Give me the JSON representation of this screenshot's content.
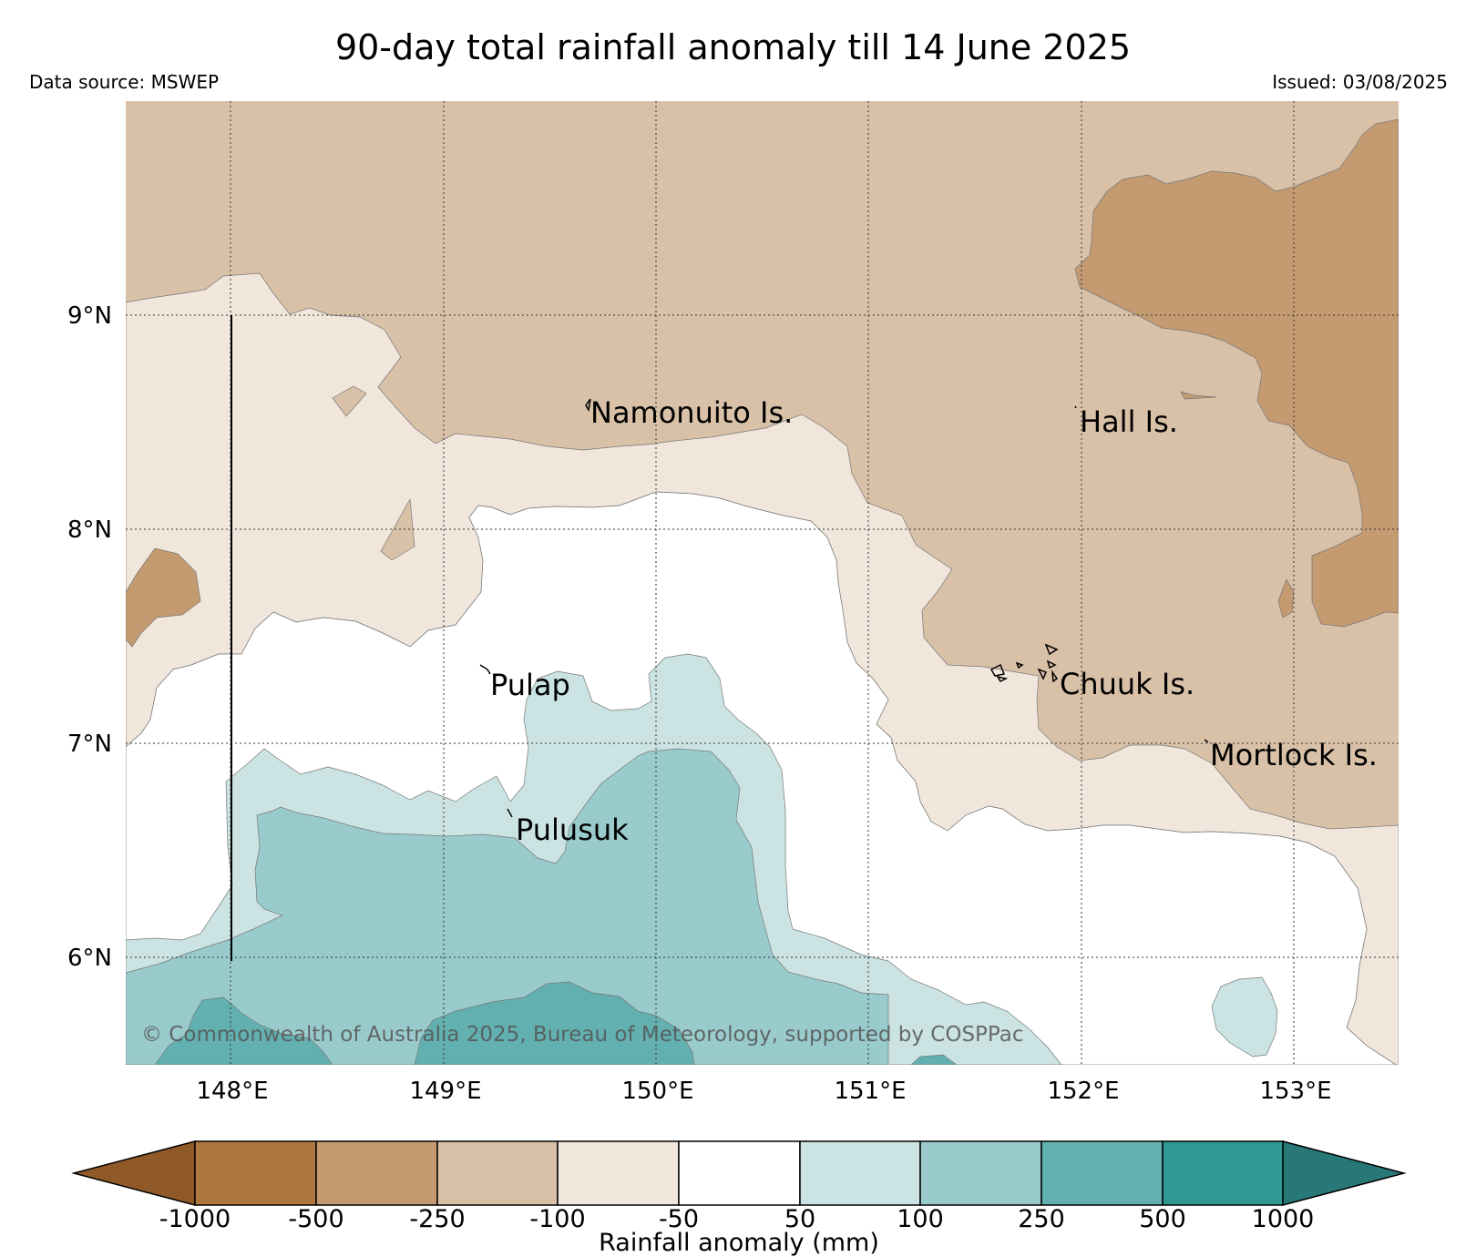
{
  "header": {
    "title": "90-day total rainfall anomaly till 14 June 2025",
    "source": "Data source: MSWEP",
    "issued": "Issued: 03/08/2025"
  },
  "map": {
    "lat_labels": [
      "9°N",
      "8°N",
      "7°N",
      "6°N"
    ],
    "lon_labels": [
      "148°E",
      "149°E",
      "150°E",
      "151°E",
      "152°E",
      "153°E"
    ],
    "places": {
      "namonuito": "Namonuito Is.",
      "hall": "Hall Is.",
      "pulap": "Pulap",
      "chuuk": "Chuuk Is.",
      "mortlock": "Mortlock Is.",
      "pulusuk": "Pulusuk"
    },
    "copyright": "© Commonwealth of Australia 2025, Bureau of Meteorology, supported by COSPPac",
    "colors": {
      "lt_minus1000": "#8f5a28",
      "minus1000_minus500": "#ad773f",
      "minus500_minus250": "#c49b71",
      "minus250_minus100": "#d9c1a8",
      "minus100_minus50": "#f0e6dc",
      "minus50_50": "#ffffff",
      "p50_100": "#cbe4e3",
      "p100_250": "#9acbcc",
      "p250_500": "#63b0b0",
      "p500_1000": "#309893",
      "gt1000": "#287878"
    }
  },
  "colorbar": {
    "title": "Rainfall anomaly (mm)",
    "ticks": [
      "-1000",
      "-500",
      "-250",
      "-100",
      "-50",
      "50",
      "100",
      "250",
      "500",
      "1000"
    ]
  }
}
